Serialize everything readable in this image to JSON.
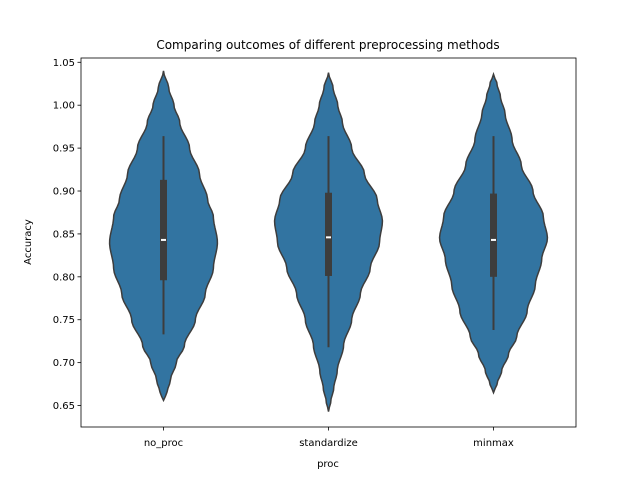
{
  "chart_data": {
    "type": "violin",
    "title": "Comparing outcomes of different preprocessing methods",
    "xlabel": "proc",
    "ylabel": "Accuracy",
    "ylim": [
      0.625,
      1.055
    ],
    "yticks": [
      0.65,
      0.7,
      0.75,
      0.8,
      0.85,
      0.9,
      0.95,
      1.0,
      1.05
    ],
    "ytick_labels": [
      "0.65",
      "0.70",
      "0.75",
      "0.80",
      "0.85",
      "0.90",
      "0.95",
      "1.00",
      "1.05"
    ],
    "categories": [
      "no_proc",
      "standardize",
      "minmax"
    ],
    "grid": false,
    "colors": {
      "fill": "#3274a1",
      "edge": "#3d3d3d",
      "box": "#3d3d3d",
      "median": "#ffffff"
    },
    "violins": [
      {
        "category": "no_proc",
        "min": 0.733,
        "q1": 0.796,
        "median": 0.843,
        "q3": 0.913,
        "max": 0.964,
        "kde_min": 0.656,
        "kde_max": 1.04,
        "profile": [
          [
            0.656,
            0.0
          ],
          [
            0.665,
            0.06
          ],
          [
            0.68,
            0.12
          ],
          [
            0.7,
            0.22
          ],
          [
            0.72,
            0.36
          ],
          [
            0.75,
            0.55
          ],
          [
            0.78,
            0.72
          ],
          [
            0.81,
            0.86
          ],
          [
            0.84,
            0.93
          ],
          [
            0.87,
            0.86
          ],
          [
            0.89,
            0.76
          ],
          [
            0.92,
            0.62
          ],
          [
            0.95,
            0.45
          ],
          [
            0.98,
            0.28
          ],
          [
            1.0,
            0.18
          ],
          [
            1.02,
            0.09
          ],
          [
            1.04,
            0.0
          ]
        ]
      },
      {
        "category": "standardize",
        "min": 0.718,
        "q1": 0.801,
        "median": 0.846,
        "q3": 0.898,
        "max": 0.964,
        "kde_min": 0.643,
        "kde_max": 1.038,
        "profile": [
          [
            0.643,
            0.0
          ],
          [
            0.655,
            0.04
          ],
          [
            0.67,
            0.09
          ],
          [
            0.69,
            0.15
          ],
          [
            0.72,
            0.26
          ],
          [
            0.75,
            0.4
          ],
          [
            0.78,
            0.55
          ],
          [
            0.81,
            0.72
          ],
          [
            0.84,
            0.88
          ],
          [
            0.865,
            0.93
          ],
          [
            0.89,
            0.84
          ],
          [
            0.92,
            0.62
          ],
          [
            0.95,
            0.4
          ],
          [
            0.98,
            0.24
          ],
          [
            1.0,
            0.16
          ],
          [
            1.02,
            0.08
          ],
          [
            1.038,
            0.0
          ]
        ]
      },
      {
        "category": "minmax",
        "min": 0.738,
        "q1": 0.8,
        "median": 0.843,
        "q3": 0.897,
        "max": 0.964,
        "kde_min": 0.665,
        "kde_max": 1.036,
        "profile": [
          [
            0.665,
            0.0
          ],
          [
            0.675,
            0.06
          ],
          [
            0.69,
            0.14
          ],
          [
            0.71,
            0.26
          ],
          [
            0.73,
            0.4
          ],
          [
            0.76,
            0.58
          ],
          [
            0.79,
            0.72
          ],
          [
            0.82,
            0.83
          ],
          [
            0.845,
            0.93
          ],
          [
            0.87,
            0.86
          ],
          [
            0.9,
            0.68
          ],
          [
            0.93,
            0.48
          ],
          [
            0.96,
            0.32
          ],
          [
            0.99,
            0.2
          ],
          [
            1.01,
            0.12
          ],
          [
            1.025,
            0.06
          ],
          [
            1.036,
            0.0
          ]
        ]
      }
    ]
  }
}
